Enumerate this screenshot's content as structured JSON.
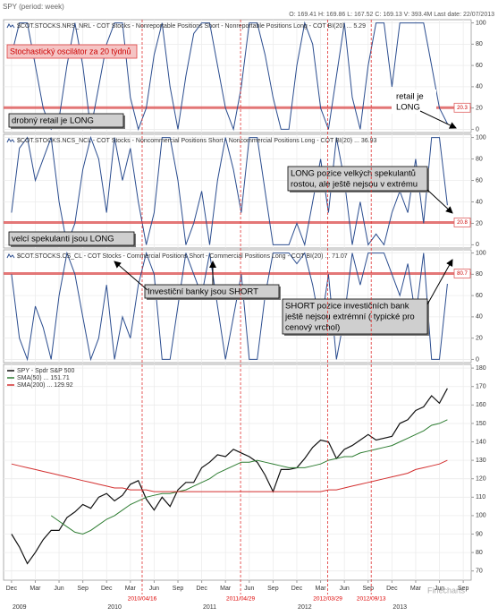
{
  "header": {
    "title": "SPY (period: week)",
    "quote": "O: 169.41 H: 169.86 L: 167.52 C: 169.13 V: 393.4M Last date: 22/07/2013"
  },
  "watermark": "Finecharts",
  "chart_data": [
    {
      "type": "line",
      "xlim": [
        "2008-11",
        "2013-10"
      ],
      "ylim": [
        -3,
        103
      ],
      "yticks": [
        0,
        20,
        40,
        60,
        80,
        100
      ],
      "grid": true,
      "threshold": 20.3,
      "x": [
        "2008-12",
        "2009-01",
        "2009-02",
        "2009-03",
        "2009-04",
        "2009-05",
        "2009-06",
        "2009-07",
        "2009-08",
        "2009-09",
        "2009-10",
        "2009-11",
        "2009-12",
        "2010-01",
        "2010-02",
        "2010-03",
        "2010-04",
        "2010-05",
        "2010-06",
        "2010-07",
        "2010-08",
        "2010-09",
        "2010-10",
        "2010-11",
        "2010-12",
        "2011-01",
        "2011-02",
        "2011-03",
        "2011-04",
        "2011-05",
        "2011-06",
        "2011-07",
        "2011-08",
        "2011-09",
        "2011-10",
        "2011-11",
        "2011-12",
        "2012-01",
        "2012-02",
        "2012-03",
        "2012-04",
        "2012-05",
        "2012-06",
        "2012-07",
        "2012-08",
        "2012-09",
        "2012-10",
        "2012-11",
        "2012-12",
        "2013-01",
        "2013-02",
        "2013-03",
        "2013-04",
        "2013-05",
        "2013-06",
        "2013-07"
      ],
      "series": [
        {
          "name": "$COT.STOCKS.NRS_NRL - COT Stocks - Nonreportable Positions Short - Nonreportable Positions Long - COT BI(20) ... 5.29",
          "color": "#2b4d8f",
          "values": [
            70,
            100,
            100,
            60,
            20,
            0,
            10,
            60,
            100,
            60,
            0,
            40,
            80,
            100,
            100,
            30,
            0,
            20,
            70,
            100,
            40,
            0,
            50,
            90,
            100,
            100,
            60,
            20,
            0,
            40,
            100,
            100,
            70,
            30,
            0,
            0,
            60,
            100,
            80,
            20,
            0,
            50,
            100,
            30,
            0,
            60,
            100,
            100,
            40,
            100,
            100,
            100,
            100,
            60,
            20,
            5.29
          ]
        }
      ],
      "annotations": [
        {
          "lines": [
            "Stochastický oscilátor za 20 týdnů"
          ]
        },
        {
          "lines": [
            "drobný retail je LONG"
          ]
        },
        {
          "lines": [
            "retail je",
            "LONG"
          ]
        }
      ]
    },
    {
      "type": "line",
      "xlim": [
        "2008-11",
        "2013-10"
      ],
      "ylim": [
        -3,
        103
      ],
      "yticks": [
        0,
        20,
        40,
        60,
        80,
        100
      ],
      "grid": true,
      "threshold": 20.8,
      "x": [
        "2008-12",
        "2009-01",
        "2009-02",
        "2009-03",
        "2009-04",
        "2009-05",
        "2009-06",
        "2009-07",
        "2009-08",
        "2009-09",
        "2009-10",
        "2009-11",
        "2009-12",
        "2010-01",
        "2010-02",
        "2010-03",
        "2010-04",
        "2010-05",
        "2010-06",
        "2010-07",
        "2010-08",
        "2010-09",
        "2010-10",
        "2010-11",
        "2010-12",
        "2011-01",
        "2011-02",
        "2011-03",
        "2011-04",
        "2011-05",
        "2011-06",
        "2011-07",
        "2011-08",
        "2011-09",
        "2011-10",
        "2011-11",
        "2011-12",
        "2012-01",
        "2012-02",
        "2012-03",
        "2012-04",
        "2012-05",
        "2012-06",
        "2012-07",
        "2012-08",
        "2012-09",
        "2012-10",
        "2012-11",
        "2012-12",
        "2013-01",
        "2013-02",
        "2013-03",
        "2013-04",
        "2013-05",
        "2013-06",
        "2013-07"
      ],
      "series": [
        {
          "name": "$COT.STOCKS.NCS_NCL - COT Stocks - Noncommercial Positions Short - Noncommercial Positions Long - COT BI(20) ... 36.93",
          "color": "#2b4d8f",
          "values": [
            30,
            90,
            100,
            60,
            80,
            100,
            40,
            0,
            20,
            70,
            100,
            80,
            30,
            100,
            60,
            90,
            40,
            0,
            30,
            100,
            100,
            60,
            0,
            20,
            50,
            0,
            60,
            100,
            70,
            30,
            100,
            100,
            50,
            0,
            0,
            0,
            20,
            0,
            40,
            80,
            30,
            100,
            60,
            0,
            40,
            0,
            10,
            0,
            30,
            50,
            30,
            80,
            20,
            100,
            100,
            36.93
          ]
        }
      ],
      "annotations": [
        {
          "lines": [
            "LONG pozice velkých spekulantů",
            "rostou, ale ještě nejsou v extrému"
          ]
        },
        {
          "lines": [
            "velcí spekulanti jsou LONG"
          ]
        }
      ]
    },
    {
      "type": "line",
      "xlim": [
        "2008-11",
        "2013-10"
      ],
      "ylim": [
        -3,
        103
      ],
      "yticks": [
        0,
        20,
        40,
        60,
        80,
        100
      ],
      "grid": true,
      "threshold": 80.7,
      "x": [
        "2008-12",
        "2009-01",
        "2009-02",
        "2009-03",
        "2009-04",
        "2009-05",
        "2009-06",
        "2009-07",
        "2009-08",
        "2009-09",
        "2009-10",
        "2009-11",
        "2009-12",
        "2010-01",
        "2010-02",
        "2010-03",
        "2010-04",
        "2010-05",
        "2010-06",
        "2010-07",
        "2010-08",
        "2010-09",
        "2010-10",
        "2010-11",
        "2010-12",
        "2011-01",
        "2011-02",
        "2011-03",
        "2011-04",
        "2011-05",
        "2011-06",
        "2011-07",
        "2011-08",
        "2011-09",
        "2011-10",
        "2011-11",
        "2011-12",
        "2012-01",
        "2012-02",
        "2012-03",
        "2012-04",
        "2012-05",
        "2012-06",
        "2012-07",
        "2012-08",
        "2012-09",
        "2012-10",
        "2012-11",
        "2012-12",
        "2013-01",
        "2013-02",
        "2013-03",
        "2013-04",
        "2013-05",
        "2013-06",
        "2013-07"
      ],
      "series": [
        {
          "name": "$COT.STOCKS.CS_CL - COT Stocks - Commercial Positions Short - Commercial Positions Long - COT BI(20) ... 71.07",
          "color": "#2b4d8f",
          "values": [
            80,
            20,
            0,
            50,
            30,
            0,
            60,
            100,
            80,
            40,
            0,
            20,
            70,
            0,
            40,
            20,
            70,
            100,
            80,
            0,
            0,
            50,
            100,
            80,
            60,
            100,
            50,
            0,
            40,
            80,
            0,
            0,
            60,
            100,
            100,
            100,
            90,
            100,
            70,
            30,
            80,
            0,
            40,
            100,
            70,
            100,
            100,
            100,
            80,
            60,
            90,
            40,
            100,
            0,
            0,
            71.07
          ]
        }
      ],
      "annotations": [
        {
          "lines": [
            "Investiční banky jsou SHORT"
          ]
        },
        {
          "lines": [
            "SHORT pozice investičních bank",
            "ještě nejsou extrémní ( typické pro",
            "cenový vrchol)"
          ]
        }
      ]
    },
    {
      "type": "line",
      "xlim": [
        "2008-11",
        "2013-10"
      ],
      "ylim": [
        65,
        182
      ],
      "yticks": [
        70,
        80,
        90,
        100,
        110,
        120,
        130,
        140,
        150,
        160,
        170,
        180
      ],
      "grid": true,
      "x": [
        "2008-12",
        "2009-01",
        "2009-02",
        "2009-03",
        "2009-04",
        "2009-05",
        "2009-06",
        "2009-07",
        "2009-08",
        "2009-09",
        "2009-10",
        "2009-11",
        "2009-12",
        "2010-01",
        "2010-02",
        "2010-03",
        "2010-04",
        "2010-05",
        "2010-06",
        "2010-07",
        "2010-08",
        "2010-09",
        "2010-10",
        "2010-11",
        "2010-12",
        "2011-01",
        "2011-02",
        "2011-03",
        "2011-04",
        "2011-05",
        "2011-06",
        "2011-07",
        "2011-08",
        "2011-09",
        "2011-10",
        "2011-11",
        "2011-12",
        "2012-01",
        "2012-02",
        "2012-03",
        "2012-04",
        "2012-05",
        "2012-06",
        "2012-07",
        "2012-08",
        "2012-09",
        "2012-10",
        "2012-11",
        "2012-12",
        "2013-01",
        "2013-02",
        "2013-03",
        "2013-04",
        "2013-05",
        "2013-06",
        "2013-07"
      ],
      "series": [
        {
          "name": "SPY - Spdr S&P 500",
          "color": "#111111",
          "values": [
            90,
            83,
            74,
            80,
            87,
            92,
            92,
            99,
            102,
            106,
            104,
            110,
            112,
            108,
            111,
            117,
            119,
            109,
            103,
            110,
            105,
            114,
            118,
            118,
            126,
            129,
            133,
            132,
            136,
            134,
            132,
            129,
            122,
            113,
            125,
            125,
            126,
            131,
            137,
            141,
            140,
            131,
            136,
            138,
            141,
            144,
            141,
            142,
            143,
            150,
            152,
            157,
            159,
            165,
            161,
            169
          ]
        },
        {
          "name": "SMA(50) ... 151.71",
          "color": "#2e7d32",
          "values": [
            null,
            null,
            null,
            null,
            null,
            100,
            97,
            94,
            91,
            90,
            92,
            95,
            98,
            100,
            103,
            106,
            108,
            110,
            111,
            112,
            112,
            113,
            114,
            116,
            118,
            120,
            123,
            125,
            127,
            129,
            129,
            130,
            129,
            128,
            127,
            126,
            126,
            126,
            127,
            128,
            130,
            131,
            132,
            132,
            134,
            135,
            136,
            137,
            138,
            140,
            142,
            144,
            146,
            149,
            150,
            152
          ]
        },
        {
          "name": "SMA(200) ... 129.92",
          "color": "#d32f2f",
          "values": [
            128,
            127,
            126,
            125,
            124,
            123,
            122,
            121,
            120,
            119,
            118,
            117,
            116,
            115,
            115,
            114,
            114,
            114,
            113,
            113,
            113,
            113,
            113,
            113,
            113,
            113,
            113,
            113,
            113,
            113,
            113,
            113,
            113,
            113,
            113,
            113,
            113,
            113,
            113,
            113,
            114,
            114,
            115,
            116,
            117,
            118,
            119,
            120,
            121,
            122,
            123,
            125,
            126,
            127,
            128,
            130
          ]
        }
      ],
      "xticks": [
        {
          "value": "2008-12",
          "label": "Dec"
        },
        {
          "value": "2009-03",
          "label": "Mar"
        },
        {
          "value": "2009-06",
          "label": "Jun"
        },
        {
          "value": "2009-09",
          "label": "Sep"
        },
        {
          "value": "2009-12",
          "label": "Dec"
        },
        {
          "value": "2010-03",
          "label": "Mar"
        },
        {
          "value": "2010-06",
          "label": "Jun"
        },
        {
          "value": "2010-09",
          "label": "Sep"
        },
        {
          "value": "2010-12",
          "label": "Dec"
        },
        {
          "value": "2011-03",
          "label": "Mar"
        },
        {
          "value": "2011-06",
          "label": "Jun"
        },
        {
          "value": "2011-09",
          "label": "Sep"
        },
        {
          "value": "2011-12",
          "label": "Dec"
        },
        {
          "value": "2012-03",
          "label": "Mar"
        },
        {
          "value": "2012-06",
          "label": "Jun"
        },
        {
          "value": "2012-09",
          "label": "Sep"
        },
        {
          "value": "2012-12",
          "label": "Dec"
        },
        {
          "value": "2013-03",
          "label": "Mar"
        },
        {
          "value": "2013-06",
          "label": "Jun"
        },
        {
          "value": "2013-09",
          "label": "Sep"
        }
      ],
      "year_labels": [
        {
          "value": "2009-01",
          "label": "2009"
        },
        {
          "value": "2010-01",
          "label": "2010"
        },
        {
          "value": "2011-01",
          "label": "2011"
        },
        {
          "value": "2012-01",
          "label": "2012"
        },
        {
          "value": "2013-01",
          "label": "2013"
        }
      ],
      "markers": [
        {
          "value": "2010-04-16",
          "label": "2010/04/16"
        },
        {
          "value": "2011-04-29",
          "label": "2011/04/29"
        },
        {
          "value": "2012-03-29",
          "label": "2012/03/29"
        },
        {
          "value": "2012-09-13",
          "label": "2012/09/13"
        }
      ]
    }
  ]
}
